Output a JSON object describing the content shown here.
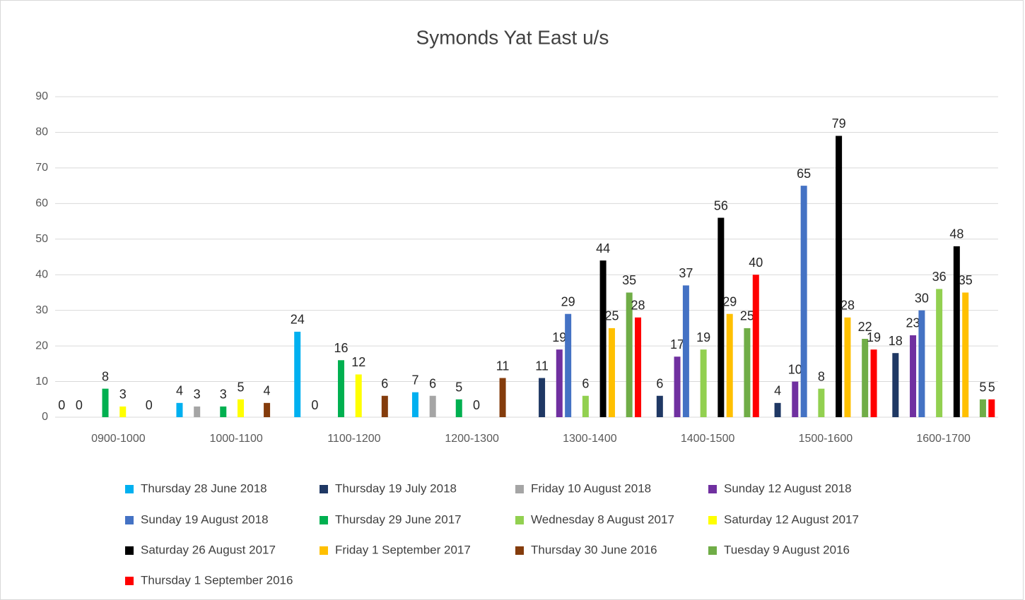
{
  "chart_data": {
    "type": "bar",
    "title": "Symonds Yat East u/s",
    "categories": [
      "0900-1000",
      "1000-1100",
      "1100-1200",
      "1200-1300",
      "1300-1400",
      "1400-1500",
      "1500-1600",
      "1600-1700"
    ],
    "series": [
      {
        "name": "Thursday 28 June 2018",
        "color": "#00B0F0",
        "values": [
          0,
          4,
          24,
          7,
          null,
          null,
          null,
          null
        ]
      },
      {
        "name": "Thursday 19 July 2018",
        "color": "#1F3864",
        "values": [
          null,
          null,
          null,
          null,
          11,
          6,
          4,
          18
        ]
      },
      {
        "name": "Friday 10 August 2018",
        "color": "#A5A5A5",
        "values": [
          0,
          3,
          0,
          6,
          null,
          null,
          null,
          null
        ]
      },
      {
        "name": "Sunday 12 August 2018",
        "color": "#7030A0",
        "values": [
          null,
          null,
          null,
          null,
          19,
          17,
          10,
          23
        ]
      },
      {
        "name": "Sunday 19 August 2018",
        "color": "#4472C4",
        "values": [
          null,
          null,
          null,
          null,
          29,
          37,
          65,
          30
        ]
      },
      {
        "name": "Thursday 29 June 2017",
        "color": "#00B050",
        "values": [
          8,
          3,
          16,
          5,
          null,
          null,
          null,
          null
        ]
      },
      {
        "name": "Wednesday 8 August 2017",
        "color": "#92D050",
        "values": [
          null,
          null,
          null,
          null,
          6,
          19,
          8,
          36
        ]
      },
      {
        "name": "Saturday 12 August 2017",
        "color": "#FFFF00",
        "values": [
          3,
          5,
          12,
          0,
          null,
          null,
          null,
          null
        ]
      },
      {
        "name": "Saturday 26 August 2017",
        "color": "#000000",
        "values": [
          null,
          null,
          null,
          null,
          44,
          56,
          79,
          48
        ]
      },
      {
        "name": "Friday 1 September 2017",
        "color": "#FFC000",
        "values": [
          null,
          null,
          null,
          null,
          25,
          29,
          28,
          35
        ]
      },
      {
        "name": "Thursday 30 June 2016",
        "color": "#843C0C",
        "values": [
          0,
          4,
          6,
          11,
          null,
          null,
          null,
          null
        ]
      },
      {
        "name": "Tuesday 9 August 2016",
        "color": "#70AD47",
        "values": [
          null,
          null,
          null,
          null,
          35,
          25,
          22,
          5
        ]
      },
      {
        "name": "Thursday 1 September 2016",
        "color": "#FF0000",
        "values": [
          null,
          null,
          null,
          null,
          28,
          40,
          19,
          5
        ]
      }
    ],
    "ylim": [
      0,
      90
    ],
    "yticks": [
      0,
      10,
      20,
      30,
      40,
      50,
      60,
      70,
      80,
      90
    ],
    "grid": true,
    "legend": "bottom"
  }
}
